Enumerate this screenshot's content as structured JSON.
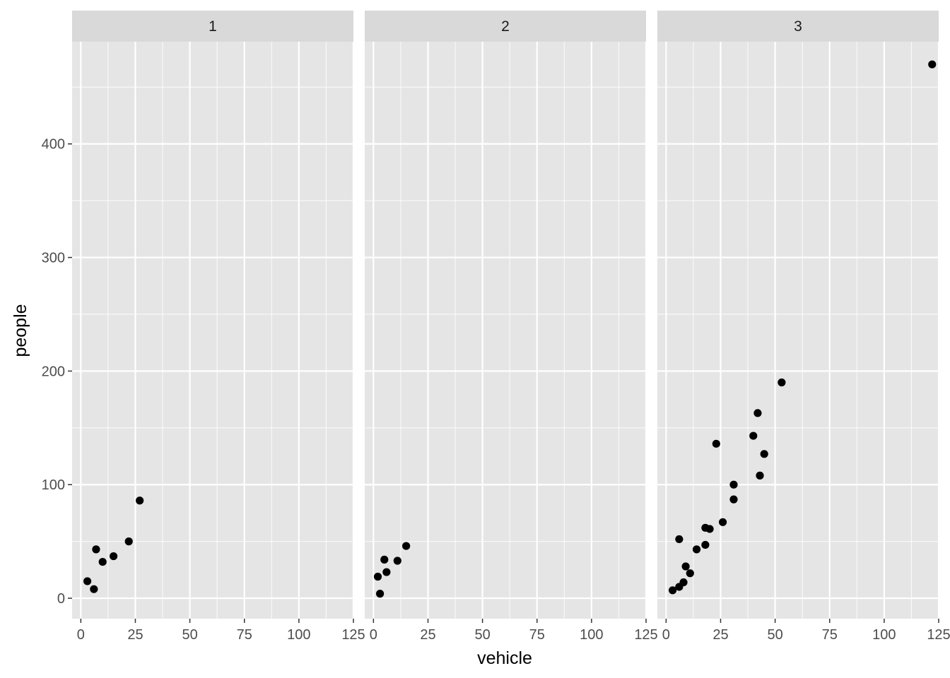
{
  "chart_data": {
    "type": "scatter",
    "facets": [
      {
        "label": "1",
        "points": [
          {
            "x": 3,
            "y": 15
          },
          {
            "x": 6,
            "y": 8
          },
          {
            "x": 7,
            "y": 43
          },
          {
            "x": 10,
            "y": 32
          },
          {
            "x": 15,
            "y": 37
          },
          {
            "x": 22,
            "y": 50
          },
          {
            "x": 27,
            "y": 86
          }
        ]
      },
      {
        "label": "2",
        "points": [
          {
            "x": 2,
            "y": 19
          },
          {
            "x": 3,
            "y": 4
          },
          {
            "x": 5,
            "y": 34
          },
          {
            "x": 6,
            "y": 23
          },
          {
            "x": 11,
            "y": 33
          },
          {
            "x": 15,
            "y": 46
          }
        ]
      },
      {
        "label": "3",
        "points": [
          {
            "x": 3,
            "y": 7
          },
          {
            "x": 6,
            "y": 10
          },
          {
            "x": 6,
            "y": 52
          },
          {
            "x": 8,
            "y": 14
          },
          {
            "x": 9,
            "y": 28
          },
          {
            "x": 11,
            "y": 22
          },
          {
            "x": 14,
            "y": 43
          },
          {
            "x": 18,
            "y": 47
          },
          {
            "x": 18,
            "y": 62
          },
          {
            "x": 20,
            "y": 61
          },
          {
            "x": 23,
            "y": 136
          },
          {
            "x": 26,
            "y": 67
          },
          {
            "x": 31,
            "y": 87
          },
          {
            "x": 31,
            "y": 100
          },
          {
            "x": 40,
            "y": 143
          },
          {
            "x": 42,
            "y": 163
          },
          {
            "x": 43,
            "y": 108
          },
          {
            "x": 45,
            "y": 127
          },
          {
            "x": 53,
            "y": 190
          },
          {
            "x": 122,
            "y": 470
          }
        ]
      }
    ],
    "xlabel": "vehicle",
    "ylabel": "people",
    "xlim": [
      -4,
      125
    ],
    "ylim": [
      -18,
      490
    ],
    "xticks": [
      0,
      25,
      50,
      75,
      100,
      125
    ],
    "yticks": [
      0,
      100,
      200,
      300,
      400
    ],
    "grid": true,
    "colors": {
      "panel_bg": "#e5e5e5",
      "strip_bg": "#d9d9d9",
      "grid": "#ffffff",
      "point": "#000000"
    }
  }
}
